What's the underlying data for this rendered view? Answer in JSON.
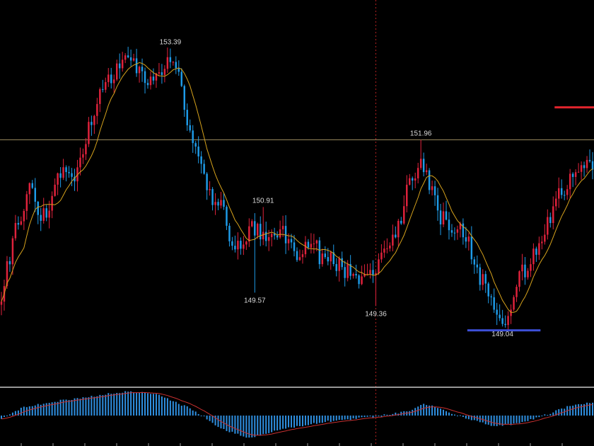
{
  "chart_data": {
    "type": "candlestick",
    "title": "",
    "colors": {
      "background": "#000000",
      "bull_candle": "#e0223c",
      "bear_candle": "#1e9be8",
      "moving_average": "#d6a21c",
      "price_level_line": "#c8b27a",
      "crosshair": "#b02020",
      "support_marker": "#3c4fd6",
      "resistance_marker": "#e0242c",
      "panel_separator": "#c8c8c8",
      "macd_histogram": "#2f8fe0",
      "macd_signal": "#c83030"
    },
    "y_range": [
      148.2,
      154.15
    ],
    "horizontal_level": 151.96,
    "price_labels": [
      {
        "text": "153.39",
        "value": 153.39,
        "index": 60,
        "position": "above"
      },
      {
        "text": "151.96",
        "value": 151.96,
        "index": 149,
        "position": "above"
      },
      {
        "text": "150.91",
        "value": 150.91,
        "index": 93,
        "position": "above"
      },
      {
        "text": "149.57",
        "value": 149.57,
        "index": 90,
        "position": "below"
      },
      {
        "text": "149.36",
        "value": 149.36,
        "index": 133,
        "position": "below"
      },
      {
        "text": "149.04",
        "value": 149.04,
        "index": 178,
        "position": "below"
      }
    ],
    "support_marker": {
      "value": 148.98,
      "index_from": 166,
      "index_to": 192
    },
    "resistance_marker": {
      "value": 152.47,
      "index_from": 197,
      "index_to": 210
    },
    "crosshair_index": 133,
    "close_path": [
      [
        0,
        149.6
      ],
      [
        5,
        150.5
      ],
      [
        10,
        151.3
      ],
      [
        14,
        150.7
      ],
      [
        18,
        151.1
      ],
      [
        22,
        151.6
      ],
      [
        26,
        151.2
      ],
      [
        30,
        152.0
      ],
      [
        35,
        152.6
      ],
      [
        40,
        153.0
      ],
      [
        45,
        153.2
      ],
      [
        50,
        152.9
      ],
      [
        55,
        153.0
      ],
      [
        60,
        153.3
      ],
      [
        63,
        152.9
      ],
      [
        67,
        152.0
      ],
      [
        71,
        151.6
      ],
      [
        74,
        151.1
      ],
      [
        78,
        150.9
      ],
      [
        81,
        150.5
      ],
      [
        85,
        150.2
      ],
      [
        90,
        150.6
      ],
      [
        95,
        150.4
      ],
      [
        100,
        150.5
      ],
      [
        105,
        150.2
      ],
      [
        110,
        150.3
      ],
      [
        115,
        150.1
      ],
      [
        120,
        150.0
      ],
      [
        125,
        149.9
      ],
      [
        130,
        149.7
      ],
      [
        135,
        150.2
      ],
      [
        140,
        150.5
      ],
      [
        145,
        151.3
      ],
      [
        149,
        151.7
      ],
      [
        152,
        151.3
      ],
      [
        155,
        150.8
      ],
      [
        160,
        150.6
      ],
      [
        165,
        150.5
      ],
      [
        168,
        150.0
      ],
      [
        172,
        149.6
      ],
      [
        176,
        149.3
      ],
      [
        179,
        149.2
      ],
      [
        183,
        149.7
      ],
      [
        188,
        150.1
      ],
      [
        192,
        150.4
      ],
      [
        196,
        150.9
      ],
      [
        200,
        151.2
      ],
      [
        204,
        151.4
      ],
      [
        208,
        151.5
      ],
      [
        210,
        151.6
      ]
    ],
    "oscillator": {
      "type": "macd_histogram",
      "path": [
        [
          0,
          -0.15
        ],
        [
          8,
          0.35
        ],
        [
          20,
          0.6
        ],
        [
          35,
          0.85
        ],
        [
          45,
          1.0
        ],
        [
          55,
          0.9
        ],
        [
          68,
          0.25
        ],
        [
          78,
          -0.55
        ],
        [
          88,
          -0.95
        ],
        [
          100,
          -0.55
        ],
        [
          115,
          -0.25
        ],
        [
          133,
          -0.05
        ],
        [
          145,
          0.2
        ],
        [
          150,
          0.5
        ],
        [
          155,
          0.3
        ],
        [
          165,
          -0.1
        ],
        [
          175,
          -0.45
        ],
        [
          185,
          -0.3
        ],
        [
          195,
          0.1
        ],
        [
          203,
          0.45
        ],
        [
          210,
          0.55
        ]
      ]
    },
    "grid": false
  }
}
